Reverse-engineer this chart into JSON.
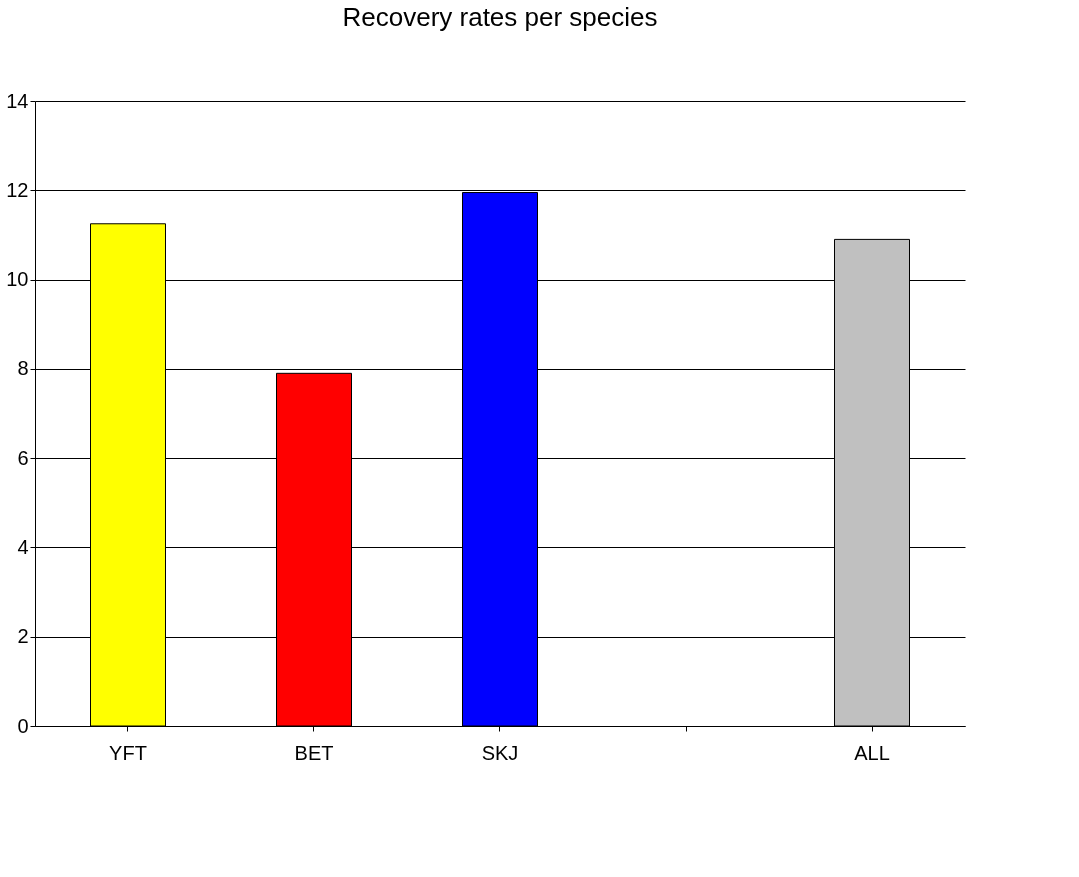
{
  "chart_data": {
    "type": "bar",
    "title": "Recovery rates per species",
    "categories": [
      "YFT",
      "BET",
      "SKJ",
      null,
      "ALL"
    ],
    "values": [
      11.25,
      7.9,
      11.95,
      null,
      10.9
    ],
    "colors": [
      "#ffff00",
      "#ff0000",
      "#0000ff",
      "#c0c0c0",
      "#c0c0c0"
    ],
    "ylim": [
      0,
      14
    ],
    "yticks": [
      0,
      2,
      4,
      6,
      8,
      10,
      12,
      14
    ],
    "grid": "y"
  }
}
